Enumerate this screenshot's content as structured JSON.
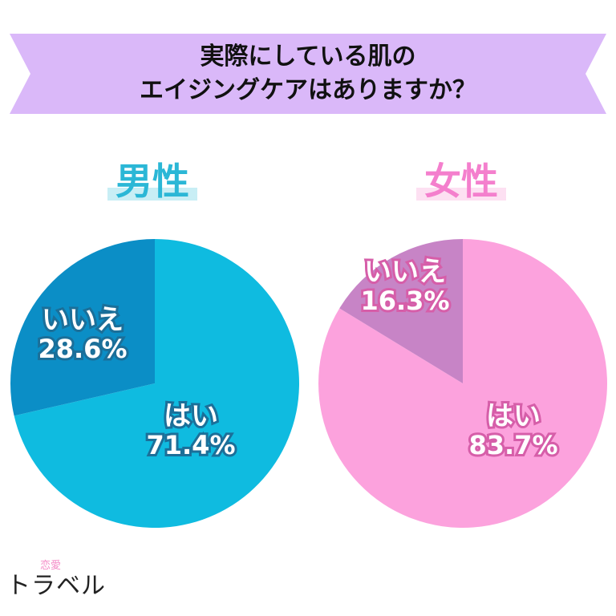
{
  "header": {
    "title_line1": "実際にしている肌の",
    "title_line2": "エイジングケアはありますか？"
  },
  "colors": {
    "banner": "#dab8f9",
    "male_yes": "#0fbbe0",
    "male_no": "#0b8ec6",
    "male_outline": "#1b6f99",
    "female_yes": "#fca2dd",
    "female_no": "#c784c6",
    "female_outline": "#d65ea9"
  },
  "logo": {
    "small": "恋愛",
    "main": "トラベル"
  },
  "chart_data": [
    {
      "type": "pie",
      "title": "男性",
      "slices": [
        {
          "label": "はい",
          "value": 71.4,
          "value_label": "71.4%"
        },
        {
          "label": "いいえ",
          "value": 28.6,
          "value_label": "28.6%"
        }
      ]
    },
    {
      "type": "pie",
      "title": "女性",
      "slices": [
        {
          "label": "はい",
          "value": 83.7,
          "value_label": "83.7%"
        },
        {
          "label": "いいえ",
          "value": 16.3,
          "value_label": "16.3%"
        }
      ]
    }
  ]
}
